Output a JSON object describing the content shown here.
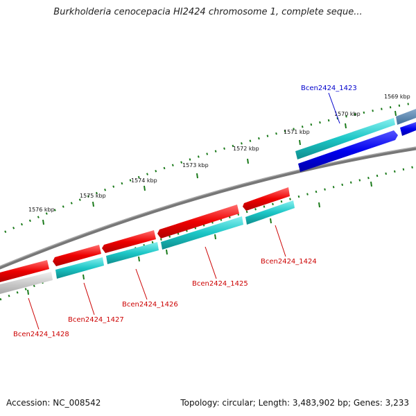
{
  "title": "Burkholderia cenocepacia HI2424 chromosome 1, complete seque...",
  "footer": {
    "accession": "Accession: NC_008542",
    "info": "Topology: circular; Length: 3,483,902 bp; Genes: 3,233"
  },
  "colors": {
    "backbone": "#7a7a7a",
    "tick": "#1a7a1a",
    "forward_cds": "#ee0000",
    "reverse_cds": "#19c8c8",
    "rna_gene": "#0000ee",
    "partial_gene": "#c0c0c0",
    "label_red": "#cc0000",
    "label_blue": "#0000cc"
  },
  "scale_labels": [
    {
      "id": "tick-1569",
      "text": "1569 kbp"
    },
    {
      "id": "tick-1570",
      "text": "1570 kbp"
    },
    {
      "id": "tick-1571",
      "text": "1571 kbp"
    },
    {
      "id": "tick-1572",
      "text": "1572 kbp"
    },
    {
      "id": "tick-1573",
      "text": "1573 kbp"
    },
    {
      "id": "tick-1574",
      "text": "1574 kbp"
    },
    {
      "id": "tick-1575",
      "text": "1575 kbp"
    },
    {
      "id": "tick-1576",
      "text": "1576 kbp"
    }
  ],
  "genes": [
    {
      "id": "bcen2424-1423",
      "name": "Bcen2424_1423"
    },
    {
      "id": "bcen2424-1424",
      "name": "Bcen2424_1424"
    },
    {
      "id": "bcen2424-1425",
      "name": "Bcen2424_1425"
    },
    {
      "id": "bcen2424-1426",
      "name": "Bcen2424_1426"
    },
    {
      "id": "bcen2424-1427",
      "name": "Bcen2424_1427"
    },
    {
      "id": "bcen2424-1428",
      "name": "Bcen2424_1428"
    }
  ]
}
